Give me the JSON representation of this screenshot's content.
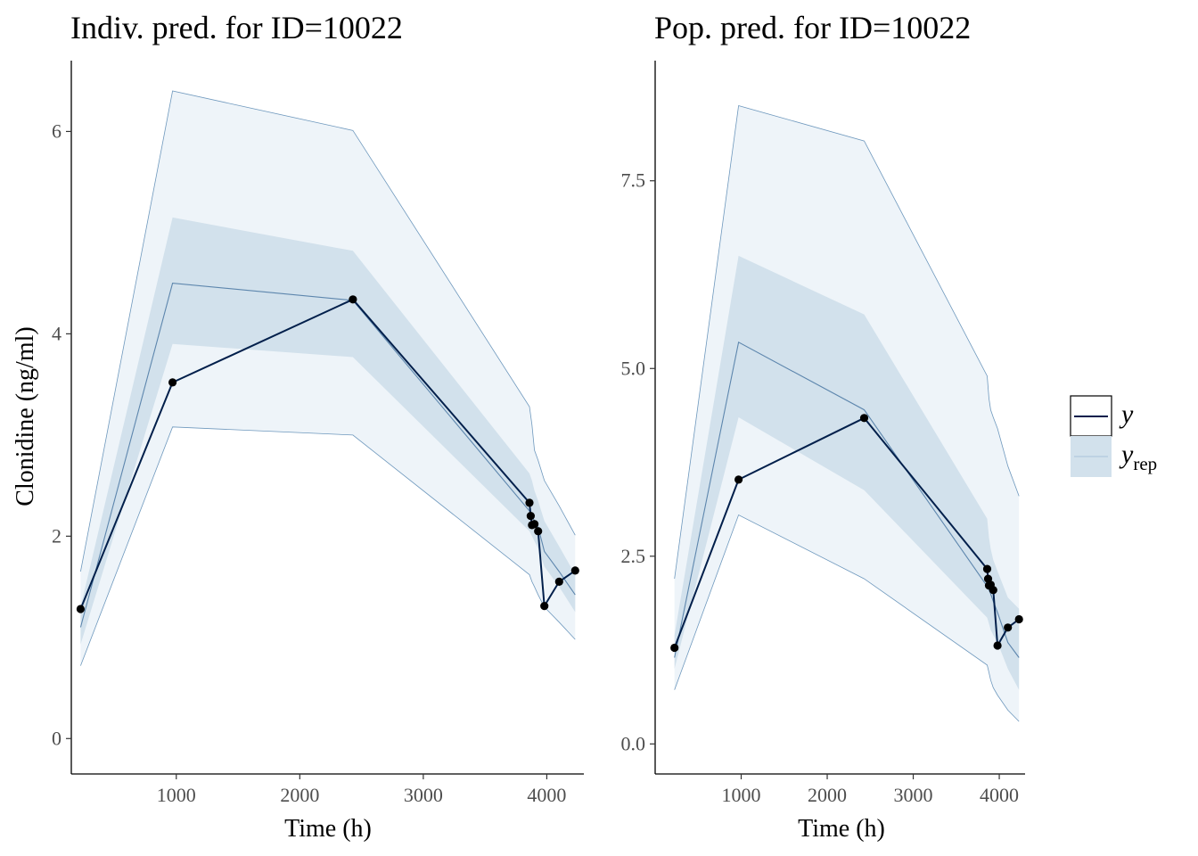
{
  "legend": {
    "y_label": "y",
    "yrep_label": "y",
    "yrep_subscript": "rep",
    "placement": "right"
  },
  "colors": {
    "outer_band": "#eef4f9",
    "inner_band": "#d2e1ec",
    "band_edge": "#6e98bd",
    "median": "#5d86ad",
    "observed": "#011f4b",
    "points": "#000000"
  },
  "chart_data": [
    {
      "type": "line",
      "title": "Indiv. pred. for ID=10022",
      "xlabel": "Time (h)",
      "ylabel": "Clonidine (ng/ml)",
      "xlim": [
        150,
        4300
      ],
      "ylim": [
        -0.35,
        6.7
      ],
      "xticks": [
        1000,
        2000,
        3000,
        4000
      ],
      "xtick_labels": [
        "1000",
        "2000",
        "3000",
        "4000"
      ],
      "yticks": [
        0,
        2,
        4,
        6
      ],
      "ytick_labels": [
        "0",
        "2",
        "4",
        "6"
      ],
      "grid": false,
      "x": [
        225,
        970,
        2430,
        3860,
        3870,
        3880,
        3900,
        3930,
        3980,
        4100,
        4230
      ],
      "y": [
        1.28,
        3.52,
        4.34,
        2.33,
        2.2,
        2.11,
        2.12,
        2.05,
        1.31,
        1.55,
        1.66
      ],
      "series": [
        {
          "name": "y",
          "values": [
            1.28,
            3.52,
            4.34,
            2.33,
            2.2,
            2.11,
            2.12,
            2.05,
            1.31,
            1.55,
            1.66
          ]
        }
      ],
      "yrep_bands": {
        "x": [
          225,
          970,
          2430,
          3860,
          3880,
          3900,
          3930,
          3980,
          4100,
          4230
        ],
        "outer_low": [
          0.72,
          3.08,
          3.0,
          1.62,
          1.55,
          1.5,
          1.42,
          1.3,
          1.15,
          0.98
        ],
        "inner_low": [
          0.93,
          3.9,
          3.77,
          2.05,
          2.0,
          1.95,
          1.88,
          1.7,
          1.5,
          1.25
        ],
        "median": [
          1.1,
          4.5,
          4.33,
          2.25,
          2.2,
          2.15,
          2.09,
          1.85,
          1.65,
          1.42
        ],
        "inner_high": [
          1.3,
          5.15,
          4.82,
          2.62,
          2.55,
          2.45,
          2.35,
          2.15,
          1.9,
          1.62
        ],
        "outer_high": [
          1.65,
          6.4,
          6.01,
          3.28,
          3.1,
          2.85,
          2.75,
          2.55,
          2.3,
          2.01
        ]
      }
    },
    {
      "type": "line",
      "title": "Pop. pred. for ID=10022",
      "xlabel": "Time (h)",
      "ylabel": "",
      "xlim": [
        0,
        4300
      ],
      "ylim": [
        -0.4,
        9.1
      ],
      "xticks": [
        1000,
        2000,
        3000,
        4000
      ],
      "xtick_labels": [
        "1000",
        "2000",
        "3000",
        "4000"
      ],
      "yticks": [
        0,
        2.5,
        5,
        7.5
      ],
      "ytick_labels": [
        "0.0",
        "2.5",
        "5.0",
        "7.5"
      ],
      "grid": false,
      "x": [
        225,
        970,
        2430,
        3860,
        3870,
        3880,
        3900,
        3930,
        3980,
        4100,
        4230
      ],
      "y": [
        1.28,
        3.52,
        4.34,
        2.33,
        2.2,
        2.11,
        2.12,
        2.05,
        1.31,
        1.55,
        1.66
      ],
      "series": [
        {
          "name": "y",
          "values": [
            1.28,
            3.52,
            4.34,
            2.33,
            2.2,
            2.11,
            2.12,
            2.05,
            1.31,
            1.55,
            1.66
          ]
        }
      ],
      "yrep_bands": {
        "x": [
          225,
          970,
          2430,
          3860,
          3880,
          3900,
          3930,
          3980,
          4100,
          4230
        ],
        "outer_low": [
          0.72,
          3.05,
          2.2,
          1.05,
          0.95,
          0.85,
          0.75,
          0.65,
          0.45,
          0.3
        ],
        "inner_low": [
          1.0,
          4.35,
          3.38,
          1.68,
          1.6,
          1.52,
          1.45,
          1.35,
          1.0,
          0.72
        ],
        "median": [
          1.15,
          5.35,
          4.45,
          2.1,
          2.05,
          2.0,
          1.9,
          1.75,
          1.35,
          1.15
        ],
        "inner_high": [
          1.45,
          6.5,
          5.72,
          3.0,
          2.75,
          2.6,
          2.45,
          2.3,
          1.95,
          1.8
        ],
        "outer_high": [
          2.2,
          8.5,
          8.03,
          4.9,
          4.6,
          4.45,
          4.35,
          4.2,
          3.7,
          3.3
        ]
      }
    }
  ]
}
